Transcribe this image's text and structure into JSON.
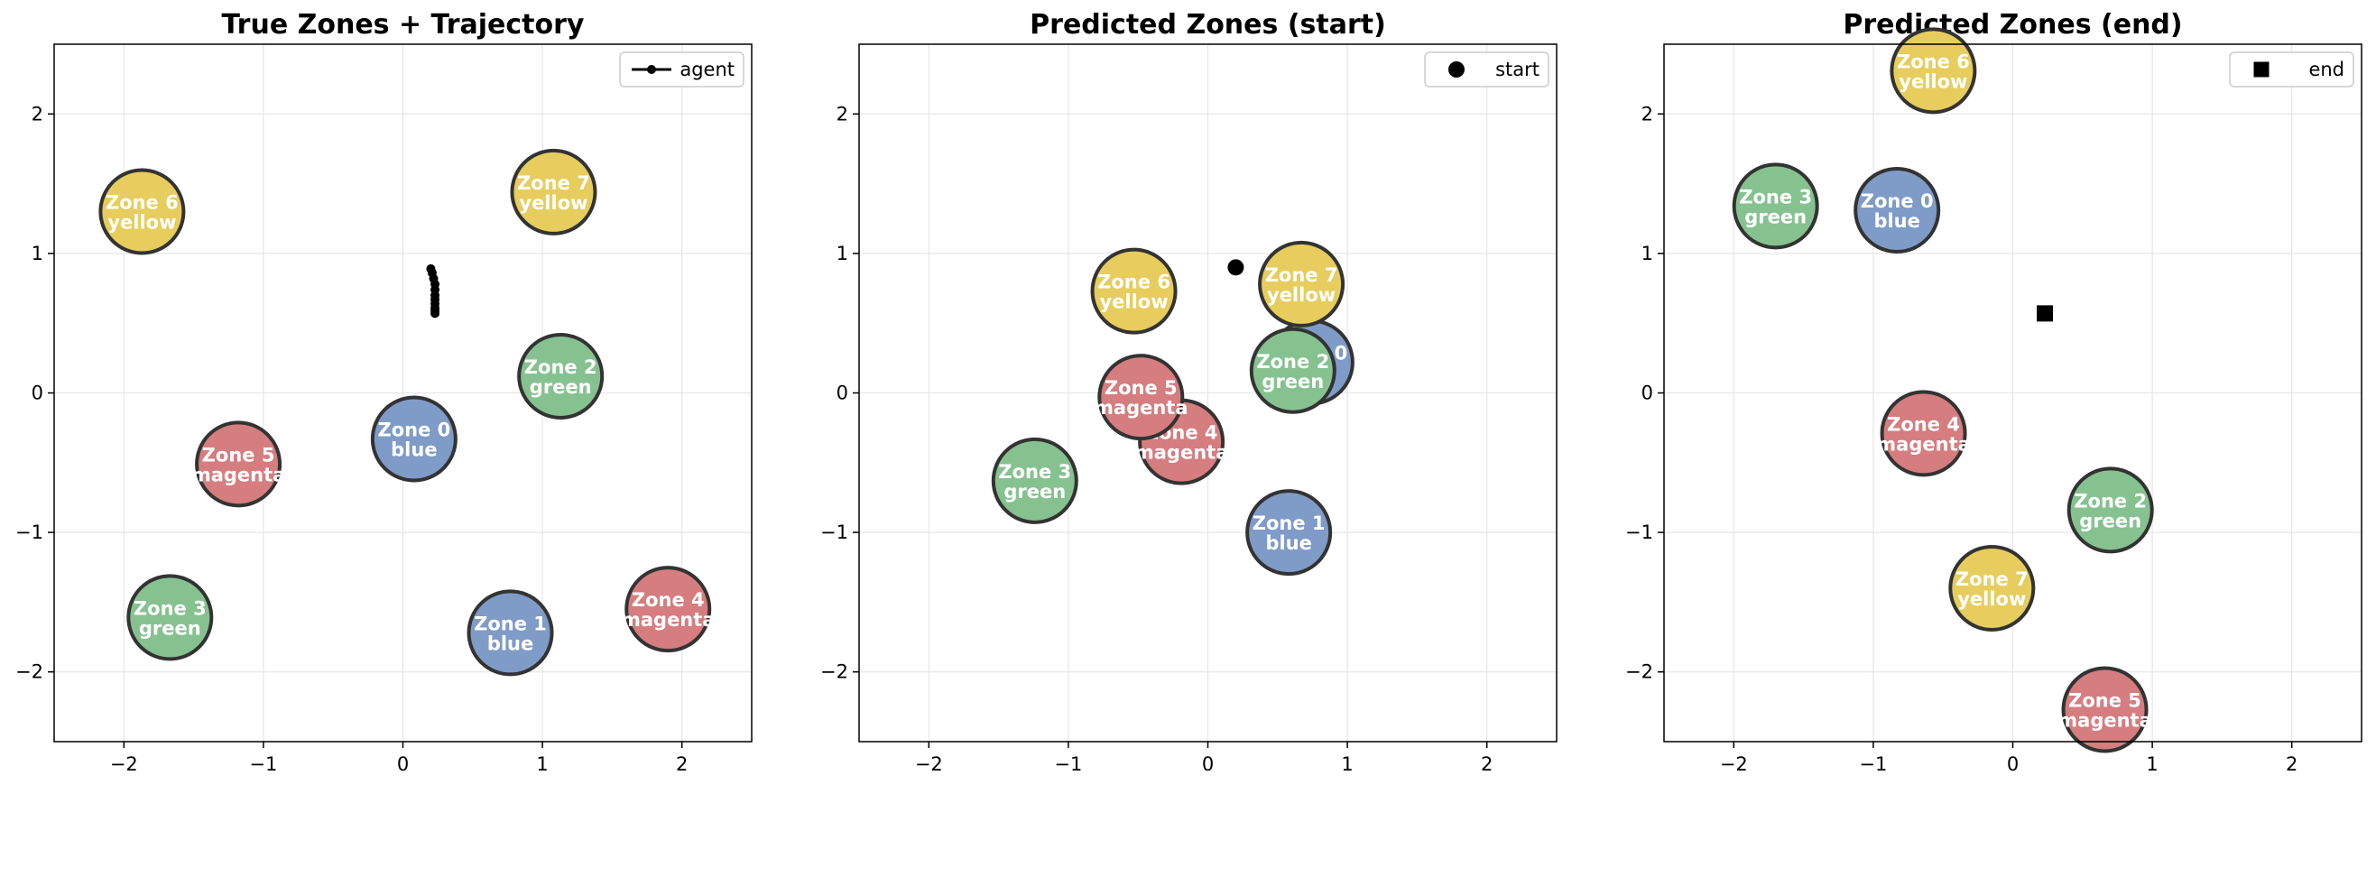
{
  "colors": {
    "blue": "#7f9bc7",
    "green": "#86c290",
    "magenta": "#d57d7f",
    "yellow": "#e6cd5d",
    "edge": "#333333",
    "grid": "#e6e6e6",
    "trajectory": "#000000"
  },
  "chart_data": [
    {
      "type": "scatter",
      "title": "True Zones + Trajectory",
      "xlim": [
        -2.5,
        2.5
      ],
      "ylim": [
        -2.5,
        2.5
      ],
      "xticks": [
        "-2",
        "-1",
        "0",
        "1",
        "2"
      ],
      "yticks": [
        "-2",
        "-1",
        "0",
        "1",
        "2"
      ],
      "grid": true,
      "legend": {
        "placement": "top-right",
        "label": "agent",
        "marker": "line-dot"
      },
      "zones": [
        {
          "name": "Zone 0",
          "color": "blue",
          "x": 0.08,
          "y": -0.33
        },
        {
          "name": "Zone 1",
          "color": "blue",
          "x": 0.77,
          "y": -1.72
        },
        {
          "name": "Zone 2",
          "color": "green",
          "x": 1.13,
          "y": 0.12
        },
        {
          "name": "Zone 3",
          "color": "green",
          "x": -1.67,
          "y": -1.61
        },
        {
          "name": "Zone 4",
          "color": "magenta",
          "x": 1.9,
          "y": -1.55
        },
        {
          "name": "Zone 5",
          "color": "magenta",
          "x": -1.18,
          "y": -0.51
        },
        {
          "name": "Zone 6",
          "color": "yellow",
          "x": -1.87,
          "y": 1.3
        },
        {
          "name": "Zone 7",
          "color": "yellow",
          "x": 1.08,
          "y": 1.44
        }
      ],
      "trajectory": {
        "x": [
          0.2,
          0.21,
          0.22,
          0.23,
          0.23,
          0.23,
          0.23,
          0.23,
          0.23,
          0.23,
          0.23
        ],
        "y": [
          0.89,
          0.86,
          0.82,
          0.78,
          0.74,
          0.7,
          0.67,
          0.64,
          0.61,
          0.59,
          0.57
        ]
      }
    },
    {
      "type": "scatter",
      "title": "Predicted Zones (start)",
      "xlim": [
        -2.5,
        2.5
      ],
      "ylim": [
        -2.5,
        2.5
      ],
      "xticks": [
        "-2",
        "-1",
        "0",
        "1",
        "2"
      ],
      "yticks": [
        "-2",
        "-1",
        "0",
        "1",
        "2"
      ],
      "grid": true,
      "legend": {
        "placement": "top-right",
        "label": "start",
        "marker": "circle"
      },
      "zones": [
        {
          "name": "Zone 0",
          "color": "blue",
          "x": 0.74,
          "y": 0.22
        },
        {
          "name": "Zone 1",
          "color": "blue",
          "x": 0.58,
          "y": -1.0
        },
        {
          "name": "Zone 2",
          "color": "green",
          "x": 0.61,
          "y": 0.16
        },
        {
          "name": "Zone 3",
          "color": "green",
          "x": -1.24,
          "y": -0.63
        },
        {
          "name": "Zone 4",
          "color": "magenta",
          "x": -0.19,
          "y": -0.35
        },
        {
          "name": "Zone 5",
          "color": "magenta",
          "x": -0.48,
          "y": -0.03
        },
        {
          "name": "Zone 6",
          "color": "yellow",
          "x": -0.53,
          "y": 0.73
        },
        {
          "name": "Zone 7",
          "color": "yellow",
          "x": 0.67,
          "y": 0.78
        }
      ],
      "point": {
        "x": 0.2,
        "y": 0.9,
        "marker": "circle"
      }
    },
    {
      "type": "scatter",
      "title": "Predicted Zones (end)",
      "xlim": [
        -2.5,
        2.5
      ],
      "ylim": [
        -2.5,
        2.5
      ],
      "xticks": [
        "-2",
        "-1",
        "0",
        "1",
        "2"
      ],
      "yticks": [
        "-2",
        "-1",
        "0",
        "1",
        "2"
      ],
      "grid": true,
      "legend": {
        "placement": "top-right",
        "label": "end",
        "marker": "square"
      },
      "zones": [
        {
          "name": "Zone 0",
          "color": "blue",
          "x": -0.83,
          "y": 1.31
        },
        {
          "name": "Zone 2",
          "color": "green",
          "x": 0.7,
          "y": -0.84
        },
        {
          "name": "Zone 3",
          "color": "green",
          "x": -1.7,
          "y": 1.34
        },
        {
          "name": "Zone 4",
          "color": "magenta",
          "x": -0.64,
          "y": -0.29
        },
        {
          "name": "Zone 5",
          "color": "magenta",
          "x": 0.66,
          "y": -2.27
        },
        {
          "name": "Zone 6",
          "color": "yellow",
          "x": -0.57,
          "y": 2.31
        },
        {
          "name": "Zone 7",
          "color": "yellow",
          "x": -0.15,
          "y": -1.4
        }
      ],
      "point": {
        "x": 0.23,
        "y": 0.57,
        "marker": "square"
      }
    }
  ]
}
